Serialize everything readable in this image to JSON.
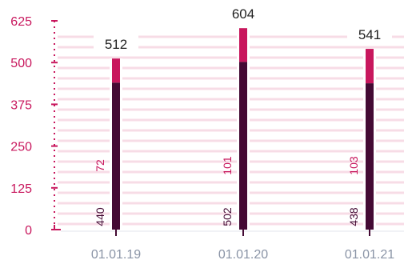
{
  "chart_data": {
    "type": "bar",
    "stacked": true,
    "categories": [
      "01.01.19",
      "01.01.20",
      "01.01.21"
    ],
    "series": [
      {
        "values": [
          440,
          502,
          438
        ]
      },
      {
        "values": [
          72,
          101,
          103
        ]
      }
    ],
    "totals": [
      512,
      604,
      541
    ],
    "yticks": [
      0,
      125,
      250,
      375,
      500,
      625
    ],
    "ylim": [
      0,
      625
    ],
    "grid": true,
    "legend": "none"
  },
  "colors": {
    "bottom_segment": "#440a34",
    "top_segment": "#c8175d",
    "axis": "#c8175d",
    "ytick_text": "#c8175d",
    "xtick_text": "#8a94a6",
    "grid": "#f7dce6",
    "total_text": "#222222",
    "bottom_label": "#440a34",
    "top_label": "#c8175d"
  }
}
